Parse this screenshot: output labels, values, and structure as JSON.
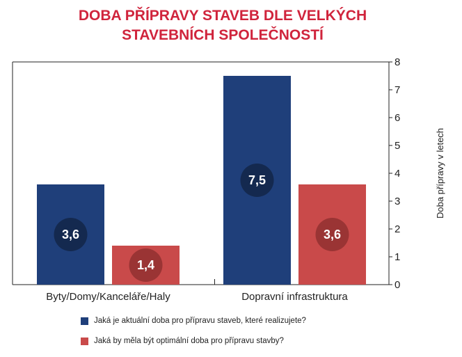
{
  "chart_data": {
    "type": "bar",
    "title_lines": [
      "DOBA PŘÍPRAVY STAVEB DLE VELKÝCH",
      "STAVEBNÍCH SPOLEČNOSTÍ"
    ],
    "categories": [
      "Byty/Domy/Kanceláře/Haly",
      "Dopravní infrastruktura"
    ],
    "series": [
      {
        "name": "Jaká je aktuální doba pro přípravu staveb, které realizujete?",
        "values": [
          3.6,
          7.5
        ],
        "labels": [
          "3,6",
          "7,5"
        ],
        "color": "#1f3f7a",
        "badge_color": "#14294f"
      },
      {
        "name": "Jaká by měla být optimální doba pro přípravu stavby?",
        "values": [
          1.4,
          3.6
        ],
        "labels": [
          "1,4",
          "3,6"
        ],
        "color": "#c94a4a",
        "badge_color": "#9a3434"
      }
    ],
    "ylabel": "Doba přípravy v letech",
    "ylim": [
      0,
      8
    ],
    "yticks": [
      "0",
      "1",
      "2",
      "3",
      "4",
      "5",
      "6",
      "7",
      "8"
    ],
    "axis_side": "right",
    "legend_position": "bottom"
  }
}
